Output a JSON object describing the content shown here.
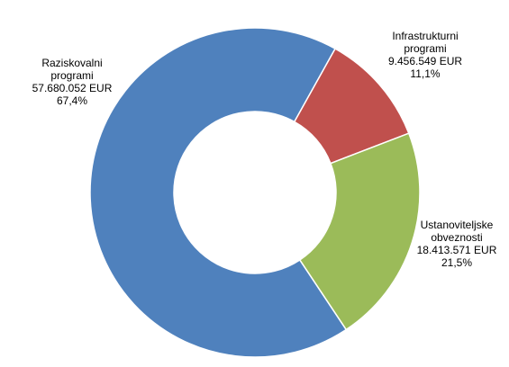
{
  "chart_data": {
    "type": "donut",
    "categories": [
      "Raziskovalni programi",
      "Infrastrukturni programi",
      "Ustanoviteljske obveznosti"
    ],
    "values": [
      57680052,
      9456549,
      18413571
    ],
    "value_labels": [
      "57.680.052 EUR",
      "9.456.549 EUR",
      "18.413.571 EUR"
    ],
    "percents": [
      67.4,
      11.1,
      21.5
    ],
    "percent_labels": [
      "67,4%",
      "11,1%",
      "21,5%"
    ],
    "colors": [
      "#4f81bd",
      "#c0504d",
      "#9bbb59"
    ]
  }
}
